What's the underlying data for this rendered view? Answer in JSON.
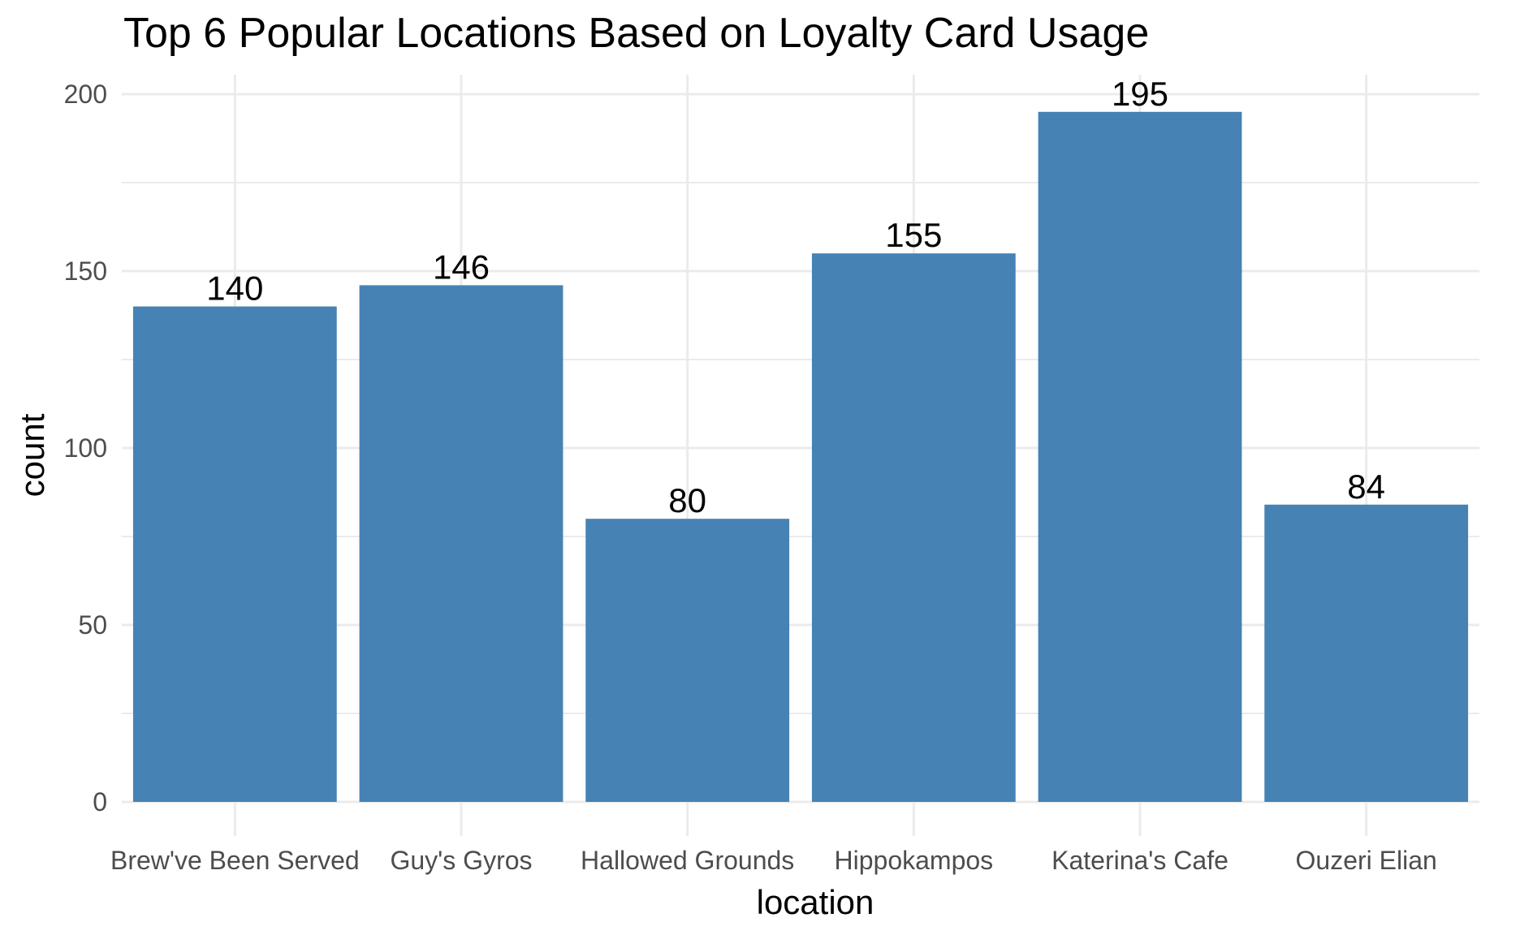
{
  "chart_data": {
    "type": "bar",
    "title": "Top 6 Popular Locations Based on Loyalty Card Usage",
    "xlabel": "location",
    "ylabel": "count",
    "categories": [
      "Brew've Been Served",
      "Guy's Gyros",
      "Hallowed Grounds",
      "Hippokampos",
      "Katerina's Cafe",
      "Ouzeri Elian"
    ],
    "values": [
      140,
      146,
      80,
      155,
      195,
      84
    ],
    "ylim": [
      0,
      200
    ],
    "yticks": [
      0,
      50,
      100,
      150,
      200
    ],
    "grid": true,
    "bar_color": "#4682B4",
    "legend": "none"
  }
}
